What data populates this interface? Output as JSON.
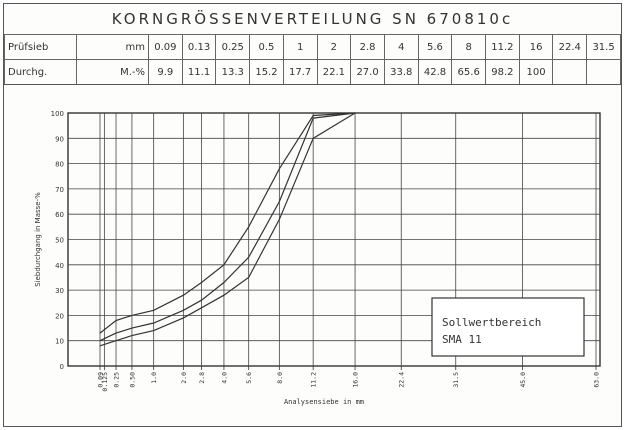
{
  "title": "KORNGRÖSSENVERTEILUNG SN 670810c",
  "table": {
    "row1_label": "Prüfsieb",
    "row1_unit": "mm",
    "row2_label": "Durchg.",
    "row2_unit": "M.-%",
    "sieves": [
      "0.09",
      "0.13",
      "0.25",
      "0.5",
      "1",
      "2",
      "2.8",
      "4",
      "5.6",
      "8",
      "11.2",
      "16",
      "22.4",
      "31.5"
    ],
    "passing": [
      "9.9",
      "11.1",
      "13.3",
      "15.2",
      "17.7",
      "22.1",
      "27.0",
      "33.8",
      "42.8",
      "65.6",
      "98.2",
      "100",
      "",
      ""
    ]
  },
  "chart_data": {
    "type": "line",
    "ylabel": "Siebdurchgang in Masse-%",
    "xlabel": "Analysensiebe in mm",
    "x_ticks": [
      "0.09",
      "0.125",
      "0.25",
      "0.50",
      "1.0",
      "2.0",
      "2.8",
      "4.0",
      "5.6",
      "8.0",
      "11.2",
      "16.0",
      "22.4",
      "31.5",
      "45.0",
      "63.0"
    ],
    "y_ticks": [
      "0",
      "10",
      "20",
      "30",
      "40",
      "50",
      "60",
      "70",
      "80",
      "90",
      "100"
    ],
    "ylim": [
      0,
      100
    ],
    "series": [
      {
        "x": [
          "0.09",
          "0.25",
          "0.50",
          "1.0",
          "2.0",
          "2.8",
          "4.0",
          "5.6",
          "8.0",
          "11.2",
          "16.0"
        ],
        "values": [
          13,
          18,
          20,
          22,
          28,
          33,
          40,
          55,
          78,
          99,
          100
        ]
      },
      {
        "x": [
          "0.09",
          "0.25",
          "0.50",
          "1.0",
          "2.0",
          "2.8",
          "4.0",
          "5.6",
          "8.0",
          "11.2",
          "16.0"
        ],
        "values": [
          10,
          13,
          15,
          17,
          22,
          26,
          33,
          43,
          65,
          98,
          100
        ]
      },
      {
        "x": [
          "0.09",
          "0.25",
          "0.50",
          "1.0",
          "2.0",
          "2.8",
          "4.0",
          "5.6",
          "8.0",
          "11.2",
          "16.0"
        ],
        "values": [
          8,
          10,
          12,
          14,
          19,
          23,
          28,
          35,
          58,
          90,
          100
        ]
      }
    ],
    "annotation": {
      "line1": "Sollwertbereich",
      "line2": "SMA 11"
    },
    "grid": true
  },
  "colors": {
    "ink": "#333333",
    "grid": "#444444"
  }
}
